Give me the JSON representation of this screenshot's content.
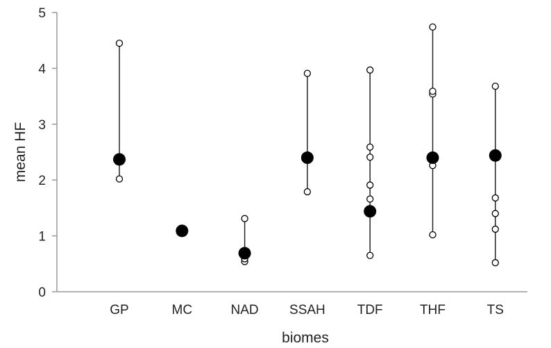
{
  "chart_data": {
    "type": "scatter",
    "title": "",
    "xlabel": "biomes",
    "ylabel": "mean HF",
    "ylim": [
      0,
      5
    ],
    "yticks": [
      0,
      1,
      2,
      3,
      4,
      5
    ],
    "grid": false,
    "legend": "none",
    "categories": [
      "GP",
      "MC",
      "NAD",
      "SSAH",
      "TDF",
      "THF",
      "TS"
    ],
    "series": [
      {
        "role": "individual values",
        "marker": "open-circle",
        "color": "#000000",
        "values": [
          [
            2.02,
            4.45
          ],
          [],
          [
            0.54,
            0.59,
            0.65,
            1.31
          ],
          [
            1.79,
            3.91
          ],
          [
            0.65,
            1.66,
            1.91,
            2.41,
            2.59,
            3.97
          ],
          [
            1.02,
            2.26,
            3.54,
            3.59,
            4.74
          ],
          [
            0.52,
            1.12,
            1.4,
            1.68,
            3.68
          ]
        ]
      },
      {
        "role": "mean",
        "marker": "filled-circle",
        "color": "#000000",
        "values": [
          2.37,
          1.09,
          0.69,
          2.4,
          1.44,
          2.4,
          2.44
        ]
      }
    ]
  }
}
